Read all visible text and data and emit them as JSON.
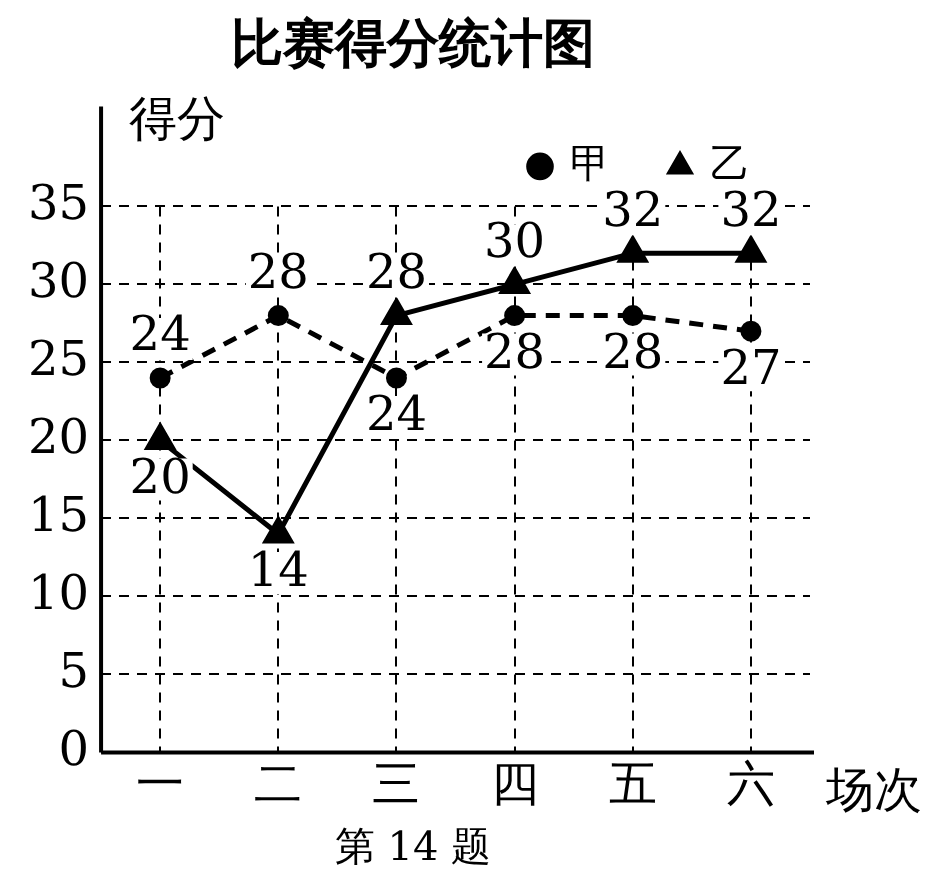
{
  "chart_data": {
    "type": "line",
    "title": "比赛得分统计图",
    "xlabel": "场次",
    "ylabel": "得分",
    "categories": [
      "一",
      "二",
      "三",
      "四",
      "五",
      "六"
    ],
    "series": [
      {
        "name": "甲",
        "color": "#000000",
        "values": [
          24,
          28,
          24,
          28,
          28,
          27
        ],
        "marker": "circle",
        "line_style": "dashed"
      },
      {
        "name": "乙",
        "color": "#000000",
        "values": [
          20,
          14,
          28,
          30,
          32,
          32
        ],
        "marker": "triangle",
        "line_style": "solid"
      }
    ],
    "ylim": [
      0,
      35
    ],
    "yticks": [
      0,
      5,
      10,
      15,
      20,
      25,
      30,
      35
    ],
    "grid": true,
    "legend": "top right",
    "data_labels": true,
    "annotations": [
      "第 14 题"
    ]
  }
}
